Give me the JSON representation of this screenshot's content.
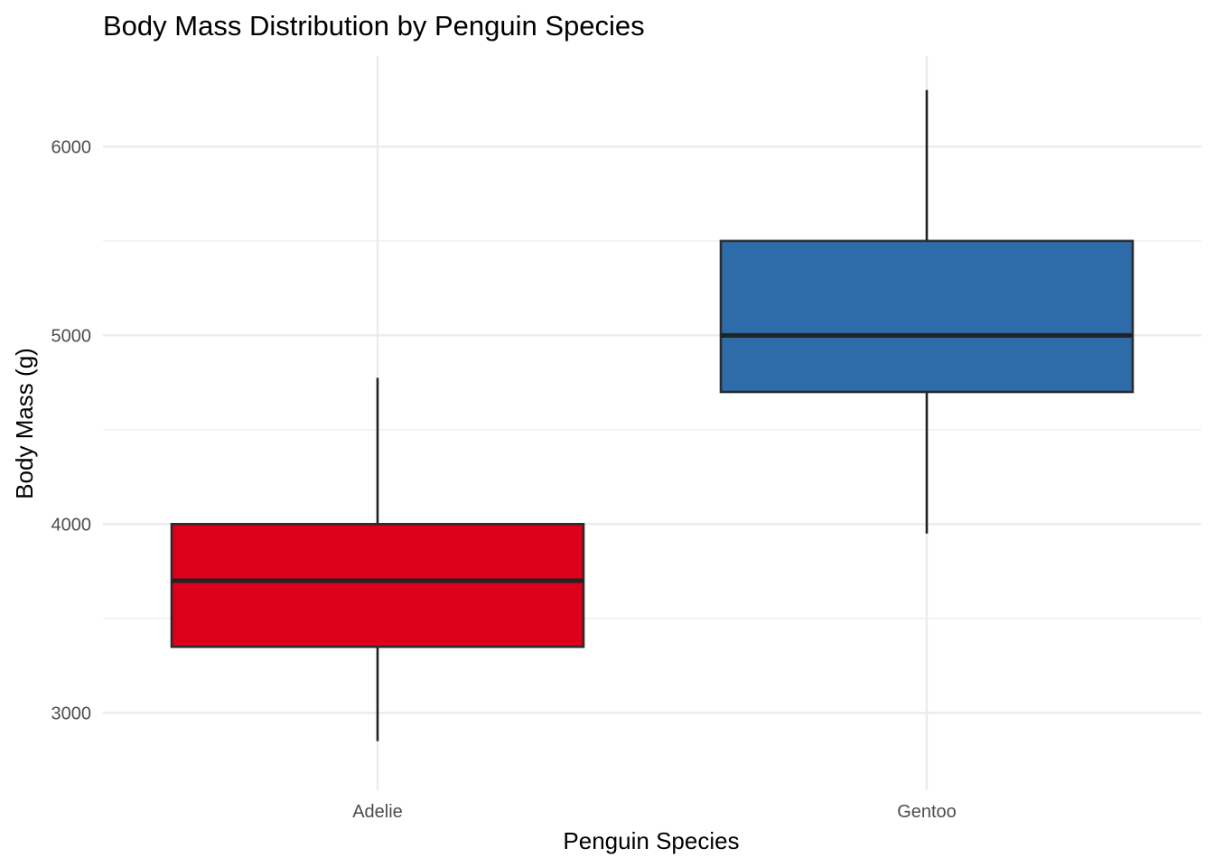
{
  "chart_data": {
    "type": "box",
    "title": "Body Mass Distribution by Penguin Species",
    "xlabel": "Penguin Species",
    "ylabel": "Body Mass (g)",
    "ylim": [
      2590,
      6480
    ],
    "y_ticks": [
      3000,
      4000,
      5000,
      6000
    ],
    "y_tick_labels": [
      "3000",
      "4000",
      "5000",
      "6000"
    ],
    "y_minor_ticks": [
      3500,
      4500,
      5500
    ],
    "categories": [
      "Adelie",
      "Gentoo"
    ],
    "boxes": [
      {
        "category": "Adelie",
        "whisker_low": 2850,
        "q1": 3350,
        "median": 3700,
        "q3": 4000,
        "whisker_high": 4775,
        "color": "#DC001A"
      },
      {
        "category": "Gentoo",
        "whisker_low": 3950,
        "q1": 4700,
        "median": 5000,
        "q3": 5500,
        "whisker_high": 6300,
        "color": "#2D6BA9"
      }
    ],
    "grid": true,
    "legend": "none"
  }
}
